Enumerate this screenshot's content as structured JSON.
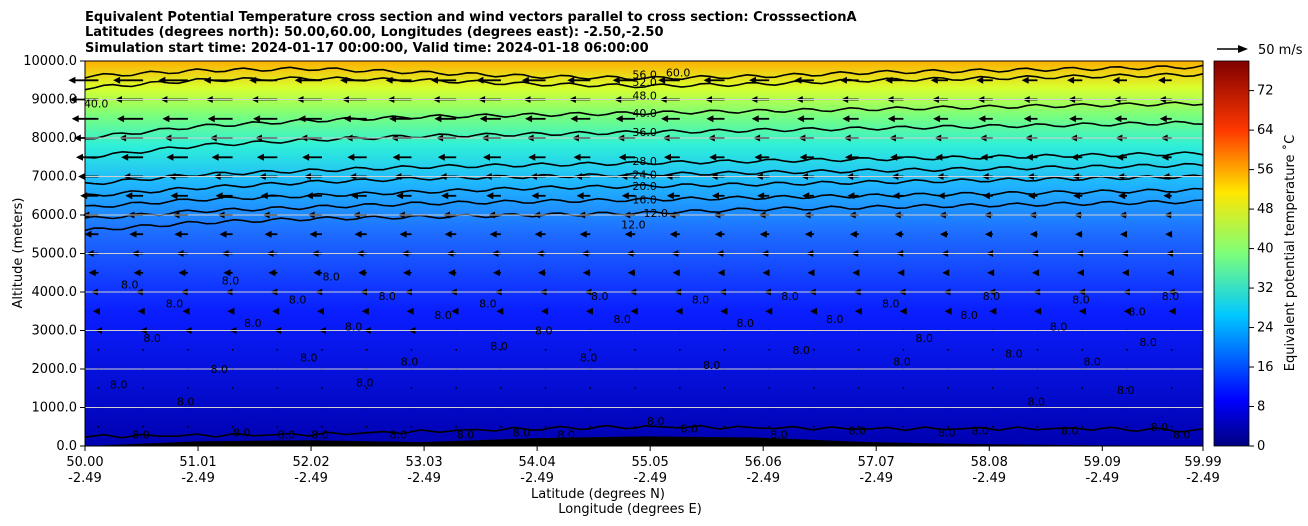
{
  "chart_data": {
    "type": "contour",
    "title_lines": [
      "Equivalent Potential Temperature cross section and wind vectors parallel to cross section: CrosssectionA",
      "Latitudes (degrees north): 50.00,60.00, Longitudes (degrees east): -2.50,-2.50",
      "Simulation start time: 2024-01-17 00:00:00, Valid time: 2024-01-18 06:00:00"
    ],
    "ylabel": "Altitude (meters)",
    "xlabel_lines": [
      "Latitude (degrees N)",
      "Longitude (degrees E)"
    ],
    "ylim": [
      0,
      10000
    ],
    "xlim": [
      50.0,
      59.99
    ],
    "yticks": [
      {
        "value": 0,
        "label": "0.0"
      },
      {
        "value": 1000,
        "label": "1000.0"
      },
      {
        "value": 2000,
        "label": "2000.0"
      },
      {
        "value": 3000,
        "label": "3000.0"
      },
      {
        "value": 4000,
        "label": "4000.0"
      },
      {
        "value": 5000,
        "label": "5000.0"
      },
      {
        "value": 6000,
        "label": "6000.0"
      },
      {
        "value": 7000,
        "label": "7000.0"
      },
      {
        "value": 8000,
        "label": "8000.0"
      },
      {
        "value": 9000,
        "label": "9000.0"
      },
      {
        "value": 10000,
        "label": "10000.0"
      }
    ],
    "xticks": [
      {
        "value": 50.0,
        "lat": "50.00",
        "lon": "-2.49"
      },
      {
        "value": 51.01,
        "lat": "51.01",
        "lon": "-2.49"
      },
      {
        "value": 52.02,
        "lat": "52.02",
        "lon": "-2.49"
      },
      {
        "value": 53.03,
        "lat": "53.03",
        "lon": "-2.49"
      },
      {
        "value": 54.04,
        "lat": "54.04",
        "lon": "-2.49"
      },
      {
        "value": 55.05,
        "lat": "55.05",
        "lon": "-2.49"
      },
      {
        "value": 56.06,
        "lat": "56.06",
        "lon": "-2.49"
      },
      {
        "value": 57.07,
        "lat": "57.07",
        "lon": "-2.49"
      },
      {
        "value": 58.08,
        "lat": "58.08",
        "lon": "-2.49"
      },
      {
        "value": 59.09,
        "lat": "59.09",
        "lon": "-2.49"
      },
      {
        "value": 59.99,
        "lat": "59.99",
        "lon": "-2.49"
      }
    ],
    "grid": "horizontal",
    "colorbar": {
      "label": "Equivalent potential temperature ˚C",
      "min": 0,
      "max": 78,
      "ticks": [
        0,
        8,
        16,
        24,
        32,
        40,
        48,
        56,
        64,
        72
      ]
    },
    "quiver_key": {
      "label": "50 m/s",
      "speed": 50
    },
    "contour_labels": [
      "56.0",
      "60.0",
      "52.0",
      "48.0",
      "40.0",
      "36.0",
      "28.0",
      "24.0",
      "20.0",
      "16.0",
      "12.0",
      "12.0",
      "8.0",
      "8.0",
      "8.0",
      "8.0",
      "40.0",
      "8.0",
      "8.0",
      "8.0",
      "8.0",
      "8.0",
      "8.0",
      "8.0",
      "8.0",
      "8.0",
      "8.0",
      "8.0",
      "8.0",
      "8.0",
      "8.0",
      "8.0",
      "8.0",
      "8.0",
      "8.0",
      "8.0",
      "8.0",
      "8.0",
      "8.0",
      "8.0",
      "8.0",
      "8.0",
      "8.0",
      "8.0",
      "8.0",
      "8.0",
      "8.0",
      "8.0",
      "8.0",
      "8.0",
      "8.0",
      "8.0",
      "8.0",
      "8.0",
      "8.0",
      "8.0",
      "8.0",
      "8.0",
      "8.0",
      "8.0",
      "8.0",
      "8.0",
      "8.0",
      "8.0",
      "8.0",
      "8.0",
      "8.0",
      "8.0",
      "8.0",
      "8.0",
      "8.0",
      "8.0"
    ],
    "contours": [
      {
        "level": 8,
        "points": [
          [
            50.0,
            250
          ],
          [
            52.0,
            300
          ],
          [
            54.0,
            450
          ],
          [
            55.0,
            500
          ],
          [
            57.0,
            450
          ],
          [
            59.0,
            450
          ],
          [
            59.99,
            400
          ]
        ]
      },
      {
        "level": 12,
        "points": [
          [
            50.0,
            5600
          ],
          [
            51.0,
            5800
          ],
          [
            52.0,
            5900
          ],
          [
            53.0,
            5950
          ],
          [
            54.0,
            6000
          ],
          [
            55.0,
            6050
          ],
          [
            56.0,
            6150
          ],
          [
            57.0,
            6200
          ],
          [
            58.0,
            6250
          ],
          [
            59.0,
            6300
          ],
          [
            59.99,
            6350
          ]
        ]
      },
      {
        "level": 16,
        "points": [
          [
            50.0,
            5900
          ],
          [
            51.0,
            6100
          ],
          [
            52.0,
            6200
          ],
          [
            53.0,
            6300
          ],
          [
            54.0,
            6350
          ],
          [
            55.0,
            6400
          ],
          [
            56.0,
            6450
          ],
          [
            57.0,
            6500
          ],
          [
            58.0,
            6550
          ],
          [
            59.0,
            6600
          ],
          [
            59.99,
            6650
          ]
        ]
      },
      {
        "level": 20,
        "points": [
          [
            50.0,
            6200
          ],
          [
            51.0,
            6400
          ],
          [
            52.0,
            6500
          ],
          [
            53.0,
            6600
          ],
          [
            54.0,
            6700
          ],
          [
            55.0,
            6750
          ],
          [
            56.0,
            6800
          ],
          [
            57.0,
            6850
          ],
          [
            58.0,
            6900
          ],
          [
            59.0,
            6950
          ],
          [
            59.99,
            7000
          ]
        ]
      },
      {
        "level": 24,
        "points": [
          [
            50.0,
            6500
          ],
          [
            51.0,
            6700
          ],
          [
            52.0,
            6850
          ],
          [
            53.0,
            6950
          ],
          [
            54.0,
            7000
          ],
          [
            55.0,
            7050
          ],
          [
            56.0,
            7100
          ],
          [
            57.0,
            7150
          ],
          [
            58.0,
            7200
          ],
          [
            59.0,
            7250
          ],
          [
            59.99,
            7300
          ]
        ]
      },
      {
        "level": 28,
        "points": [
          [
            50.0,
            6800
          ],
          [
            51.0,
            7050
          ],
          [
            52.0,
            7150
          ],
          [
            53.0,
            7250
          ],
          [
            54.0,
            7300
          ],
          [
            55.0,
            7350
          ],
          [
            56.0,
            7400
          ],
          [
            57.0,
            7450
          ],
          [
            58.0,
            7500
          ],
          [
            59.0,
            7550
          ],
          [
            59.99,
            7600
          ]
        ]
      },
      {
        "level": 36,
        "points": [
          [
            50.0,
            7500
          ],
          [
            51.0,
            7800
          ],
          [
            52.0,
            7950
          ],
          [
            53.0,
            8050
          ],
          [
            54.0,
            8100
          ],
          [
            55.0,
            8150
          ],
          [
            56.0,
            8200
          ],
          [
            57.0,
            8250
          ],
          [
            58.0,
            8300
          ],
          [
            59.0,
            8350
          ],
          [
            59.99,
            8400
          ]
        ]
      },
      {
        "level": 40,
        "points": [
          [
            50.0,
            8000
          ],
          [
            51.0,
            8300
          ],
          [
            52.0,
            8450
          ],
          [
            53.0,
            8550
          ],
          [
            54.0,
            8600
          ],
          [
            55.0,
            8650
          ],
          [
            56.0,
            8700
          ],
          [
            57.0,
            8750
          ],
          [
            58.0,
            8800
          ],
          [
            59.0,
            8850
          ],
          [
            59.99,
            8900
          ]
        ]
      },
      {
        "level": 48,
        "points": [
          [
            50.0,
            9300
          ],
          [
            51.0,
            9500
          ],
          [
            52.0,
            9550
          ],
          [
            53.0,
            9500
          ],
          [
            54.0,
            9400
          ],
          [
            55.0,
            9350
          ],
          [
            56.0,
            9400
          ],
          [
            57.0,
            9500
          ],
          [
            58.0,
            9550
          ],
          [
            59.0,
            9600
          ],
          [
            59.99,
            9650
          ]
        ]
      },
      {
        "level": 52,
        "points": [
          [
            50.0,
            9600
          ],
          [
            51.0,
            9750
          ],
          [
            52.0,
            9800
          ],
          [
            53.0,
            9700
          ],
          [
            54.0,
            9600
          ],
          [
            55.0,
            9550
          ],
          [
            56.0,
            9600
          ],
          [
            57.0,
            9700
          ],
          [
            58.0,
            9750
          ],
          [
            59.0,
            9800
          ],
          [
            59.99,
            9850
          ]
        ]
      }
    ],
    "terrain": [
      [
        50.0,
        0
      ],
      [
        51.0,
        120
      ],
      [
        52.0,
        150
      ],
      [
        53.0,
        100
      ],
      [
        54.0,
        200
      ],
      [
        55.0,
        250
      ],
      [
        56.0,
        220
      ],
      [
        57.0,
        100
      ],
      [
        58.0,
        50
      ],
      [
        59.0,
        20
      ],
      [
        59.99,
        0
      ]
    ]
  }
}
